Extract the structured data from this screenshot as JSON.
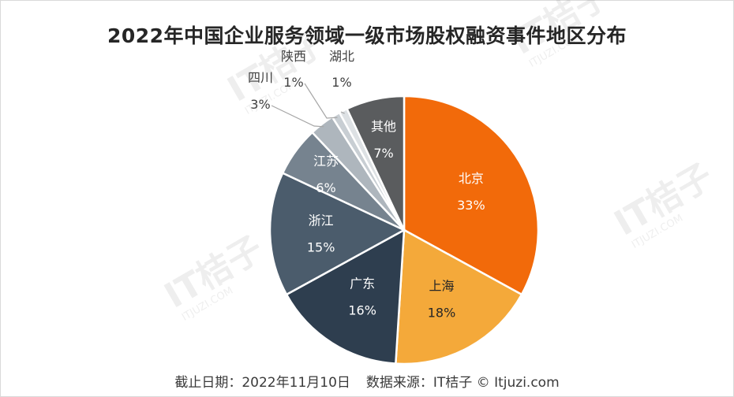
{
  "chart_data": {
    "type": "pie",
    "title": "2022年中国企业服务领域一级市场股权融资事件地区分布",
    "categories": [
      "北京",
      "上海",
      "广东",
      "浙江",
      "江苏",
      "四川",
      "陕西",
      "湖北",
      "其他"
    ],
    "values": [
      33,
      18,
      16,
      15,
      6,
      3,
      1,
      1,
      7
    ],
    "value_labels": [
      "33%",
      "18%",
      "16%",
      "15%",
      "6%",
      "3%",
      "1%",
      "1%",
      "7%"
    ],
    "colors": [
      "#f26a0a",
      "#f4a93a",
      "#2e3e4f",
      "#4b5c6c",
      "#76838f",
      "#aeb6bd",
      "#c8ced3",
      "#dde1e4",
      "#5a5c5e"
    ],
    "label_colors": [
      "#ffffff",
      "#262626",
      "#ffffff",
      "#ffffff",
      "#ffffff",
      "#404040",
      "#404040",
      "#404040",
      "#ffffff"
    ],
    "start_angle_deg": 0,
    "direction": "clockwise"
  },
  "footer": {
    "date": "截止日期：2022年11月10日",
    "source": "数据来源：IT桔子 © Itjuzi.com"
  },
  "watermark": {
    "text": "IT桔子",
    "subtext": "ITJUZI.COM"
  }
}
